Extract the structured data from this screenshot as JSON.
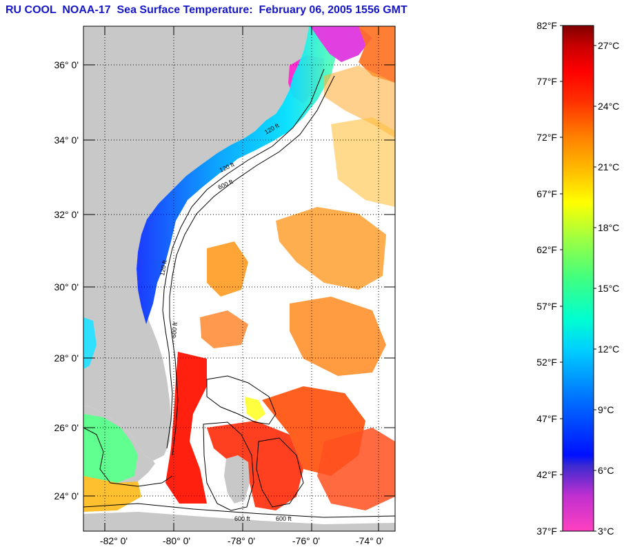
{
  "title": "RU COOL  NOAA-17  Sea Surface Temperature:  February 06, 2005 1556 GMT",
  "map": {
    "lat_labels": [
      "36° 0'",
      "34° 0'",
      "32° 0'",
      "30° 0'",
      "28° 0'",
      "26° 0'",
      "24° 0'"
    ],
    "lon_labels": [
      "-82° 0'",
      "-80° 0'",
      "-78° 0'",
      "-76° 0'",
      "-74° 0'"
    ],
    "contour_labels": [
      "120 ft",
      "600 ft",
      "120 ft",
      "600 ft",
      "120 ft",
      "600 ft",
      "600 ft"
    ],
    "colors": {
      "land": "#c8c8c8",
      "ocean_cloud": "#ffffff",
      "contour": "#000000",
      "grid": "#000000"
    }
  },
  "colorbar": {
    "fahrenheit_labels": [
      "82°F",
      "77°F",
      "72°F",
      "67°F",
      "62°F",
      "57°F",
      "52°F",
      "47°F",
      "42°F",
      "37°F"
    ],
    "celsius_labels": [
      "27°C",
      "24°C",
      "21°C",
      "18°C",
      "15°C",
      "12°C",
      "9°C",
      "6°C",
      "3°C"
    ],
    "gradient_stops": [
      "#ff40c0",
      "#9a30e0",
      "#3a2ad0",
      "#0010ff",
      "#0070ff",
      "#00d0ff",
      "#00ffd0",
      "#40ff80",
      "#a0ff40",
      "#ffff00",
      "#ffc000",
      "#ff8000",
      "#ff3000",
      "#ff0000",
      "#c80000",
      "#800000"
    ]
  }
}
